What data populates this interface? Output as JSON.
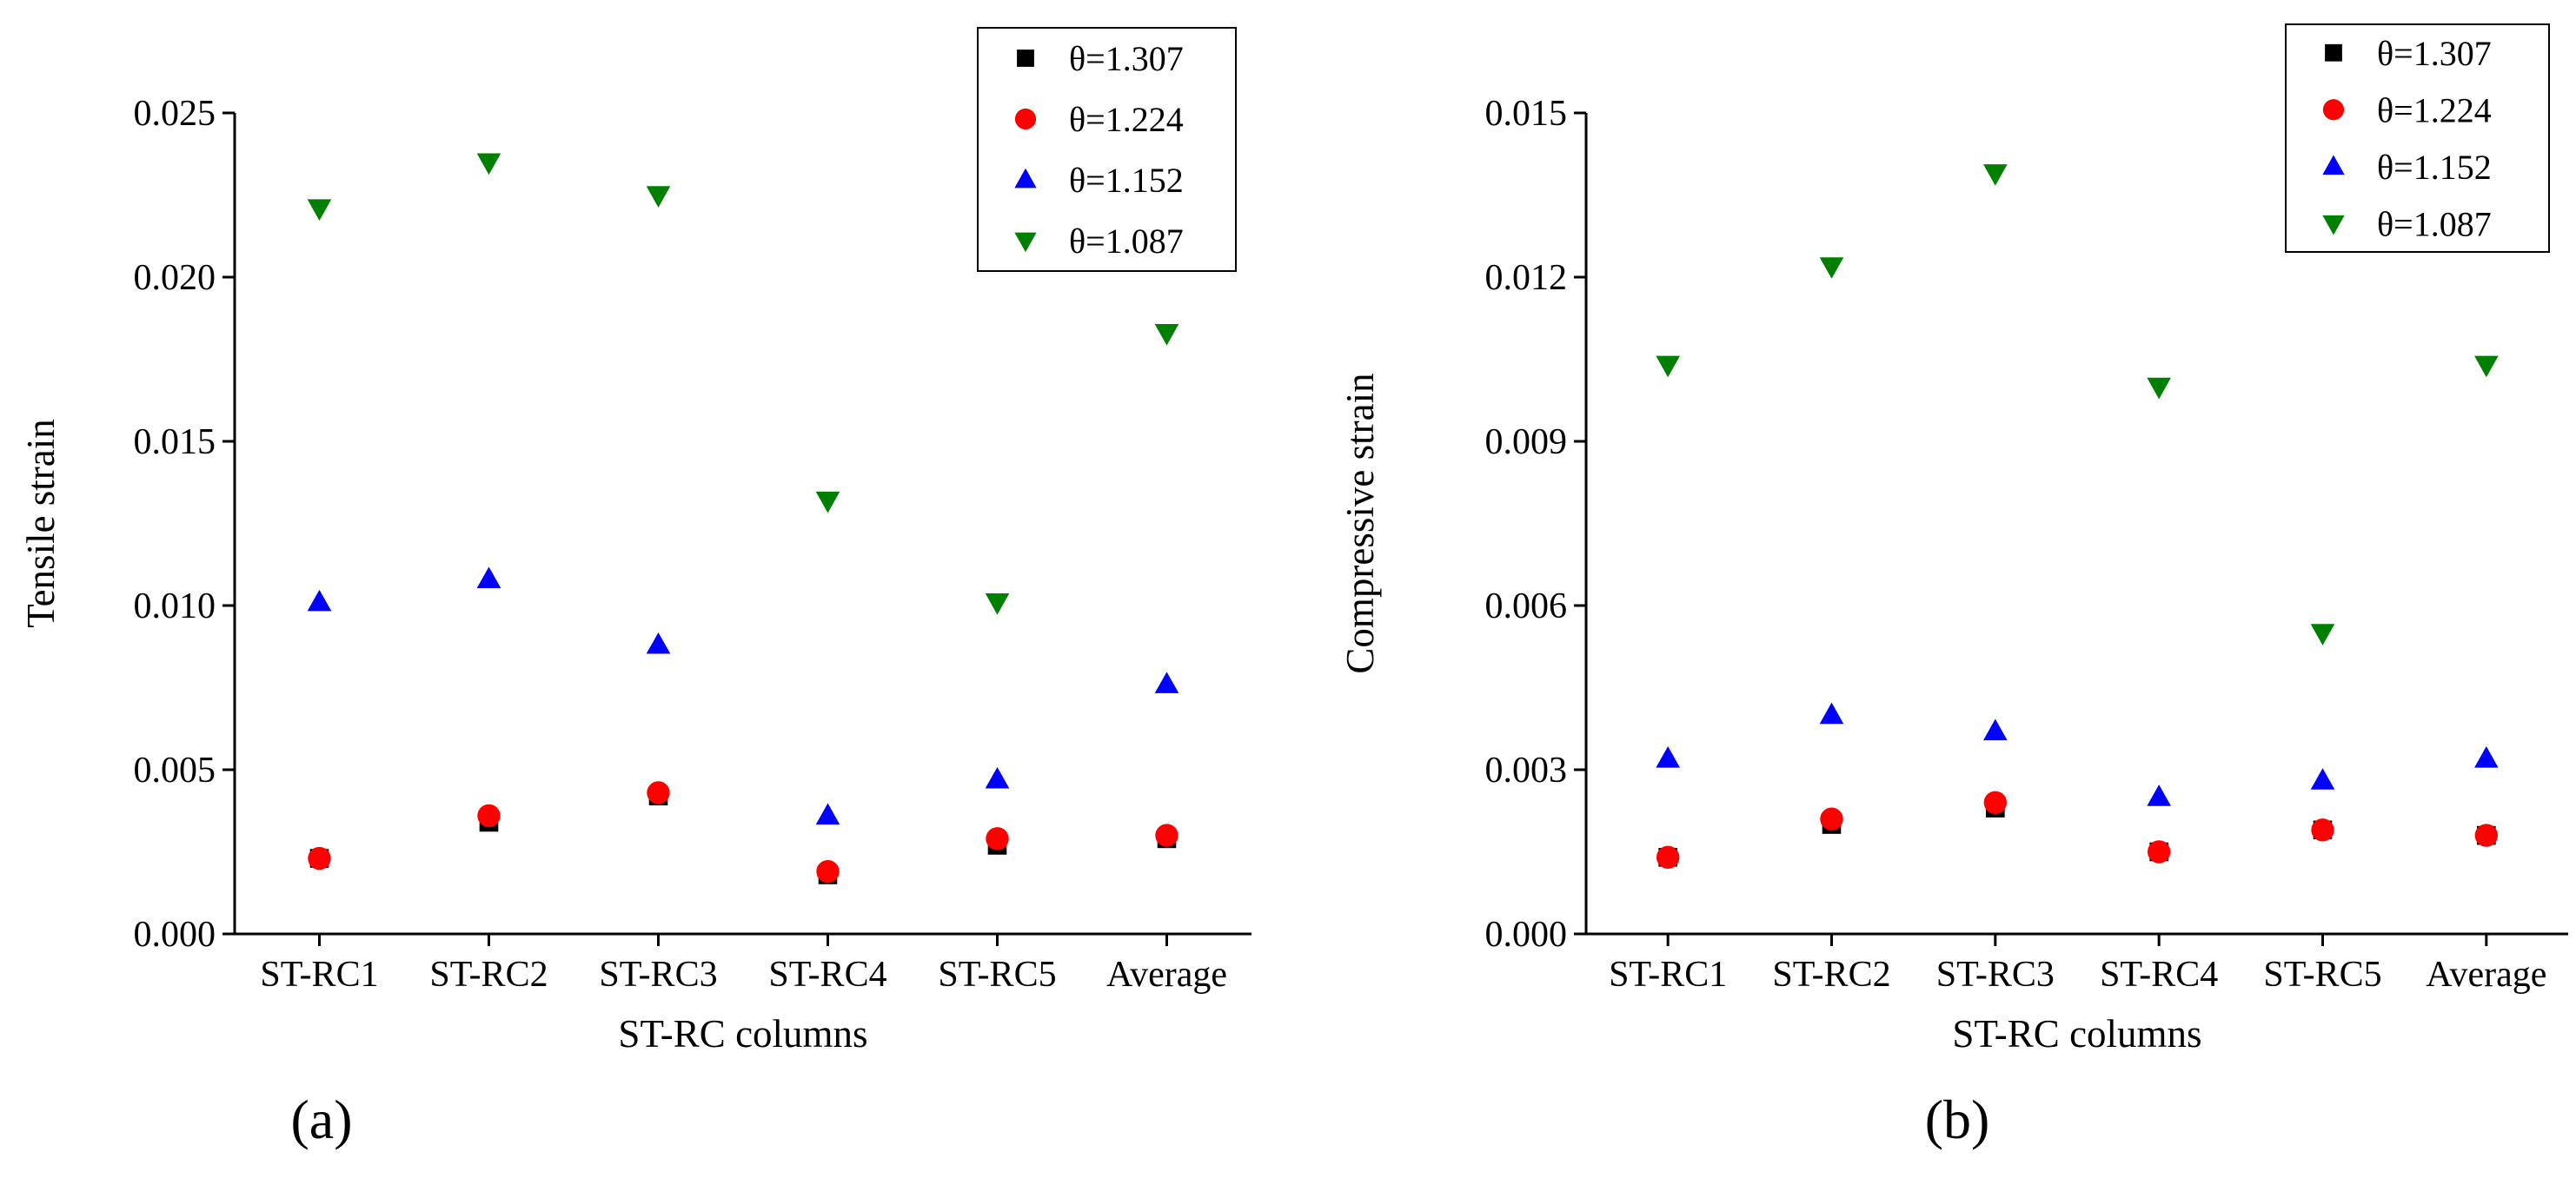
{
  "chart_data": [
    {
      "type": "scatter",
      "panel_label": "(a)",
      "xlabel": "ST-RC columns",
      "ylabel": "Tensile strain",
      "categories": [
        "ST-RC1",
        "ST-RC2",
        "ST-RC3",
        "ST-RC4",
        "ST-RC5",
        "Average"
      ],
      "ylim": [
        0,
        0.025
      ],
      "yticks": [
        "0.000",
        "0.005",
        "0.010",
        "0.015",
        "0.020",
        "0.025"
      ],
      "legend_position": "top-right",
      "series": [
        {
          "name": "θ=1.307",
          "marker": "square",
          "color": "#000000",
          "values": [
            0.0023,
            0.0034,
            0.0042,
            0.0018,
            0.0027,
            0.0029
          ]
        },
        {
          "name": "θ=1.224",
          "marker": "circle",
          "color": "#ff0000",
          "values": [
            0.0023,
            0.0036,
            0.0043,
            0.0019,
            0.0029,
            0.003
          ]
        },
        {
          "name": "θ=1.152",
          "marker": "triangle-up",
          "color": "#0000ff",
          "values": [
            0.0101,
            0.0108,
            0.0088,
            0.0036,
            0.0047,
            0.0076
          ]
        },
        {
          "name": "θ=1.087",
          "marker": "triangle-down",
          "color": "#008000",
          "values": [
            0.0221,
            0.0235,
            0.0225,
            0.0132,
            0.0101,
            0.0183
          ]
        }
      ]
    },
    {
      "type": "scatter",
      "panel_label": "(b)",
      "xlabel": "ST-RC columns",
      "ylabel": "Compressive strain",
      "categories": [
        "ST-RC1",
        "ST-RC2",
        "ST-RC3",
        "ST-RC4",
        "ST-RC5",
        "Average"
      ],
      "ylim": [
        0,
        0.015
      ],
      "yticks": [
        "0.000",
        "0.003",
        "0.006",
        "0.009",
        "0.012",
        "0.015"
      ],
      "legend_position": "top-right",
      "series": [
        {
          "name": "θ=1.307",
          "marker": "square",
          "color": "#000000",
          "values": [
            0.0014,
            0.002,
            0.0023,
            0.0015,
            0.0019,
            0.0018
          ]
        },
        {
          "name": "θ=1.224",
          "marker": "circle",
          "color": "#ff0000",
          "values": [
            0.0014,
            0.0021,
            0.0024,
            0.0015,
            0.0019,
            0.0018
          ]
        },
        {
          "name": "θ=1.152",
          "marker": "triangle-up",
          "color": "#0000ff",
          "values": [
            0.0032,
            0.004,
            0.0037,
            0.0025,
            0.0028,
            0.0032
          ]
        },
        {
          "name": "θ=1.087",
          "marker": "triangle-down",
          "color": "#008000",
          "values": [
            0.0104,
            0.0122,
            0.0139,
            0.01,
            0.0055,
            0.0104
          ]
        }
      ]
    }
  ]
}
